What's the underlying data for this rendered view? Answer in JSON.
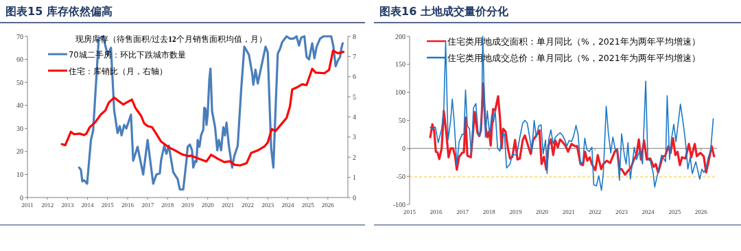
{
  "chart_data": [
    {
      "type": "line",
      "title": "图表15 库存依然偏高",
      "legend_title": "现房库存（待售面积/过去**12**个月销售面积均值，月）",
      "legend": "top",
      "xlim": [
        2011,
        2027
      ],
      "xticks": [
        2011,
        2012,
        2013,
        2014,
        2015,
        2016,
        2017,
        2018,
        2019,
        2020,
        2021,
        2022,
        2023,
        2024,
        2025,
        2026
      ],
      "ylim": [
        0,
        70
      ],
      "yticks": [
        0,
        10,
        20,
        30,
        40,
        50,
        60,
        70
      ],
      "y2lim": [
        0,
        8
      ],
      "y2ticks": [
        0,
        1,
        2,
        3,
        4,
        5,
        6,
        7,
        8
      ],
      "series": [
        {
          "name": "70城二手房：环比下跌城市数量",
          "color": "#4a7ebb",
          "x": [
            2013.58,
            2013.67,
            2013.74,
            2013.83,
            2013.98,
            2014.17,
            2014.28,
            2014.56,
            2014.78,
            2015.0,
            2015.17,
            2015.33,
            2015.5,
            2015.61,
            2015.7,
            2015.83,
            2015.94,
            2016.17,
            2016.28,
            2016.5,
            2016.78,
            2017.0,
            2017.28,
            2017.44,
            2017.61,
            2017.67,
            2017.83,
            2017.94,
            2018.06,
            2018.28,
            2018.5,
            2018.61,
            2018.78,
            2018.94,
            2019.0,
            2019.11,
            2019.22,
            2019.28,
            2019.39,
            2019.44,
            2019.5,
            2019.59,
            2019.67,
            2019.78,
            2019.83,
            2019.89,
            2019.94,
            2020.0,
            2020.08,
            2020.14,
            2020.22,
            2020.37,
            2020.48,
            2020.56,
            2020.67,
            2020.78,
            2020.86,
            2020.94,
            2021.06,
            2021.22,
            2021.33,
            2021.5,
            2021.67,
            2021.83,
            2022.06,
            2022.22,
            2022.28,
            2022.39,
            2022.5,
            2022.67,
            2022.89,
            2023.0,
            2023.17,
            2023.28,
            2023.39,
            2023.5,
            2023.61,
            2023.72,
            2023.94,
            2024.11,
            2024.28,
            2024.44,
            2024.56,
            2024.67,
            2024.83,
            2024.94,
            2025.06,
            2025.22,
            2025.33,
            2025.44,
            2025.61,
            2025.78,
            2026.17,
            2026.28,
            2026.39,
            2026.5,
            2026.61,
            2026.67,
            2026.74
          ],
          "values": [
            13,
            12,
            7,
            7.5,
            6,
            25,
            29,
            69,
            70,
            62,
            65,
            38,
            28,
            31,
            27,
            31.5,
            30,
            36,
            16,
            22,
            10,
            25,
            6,
            10,
            10.5,
            16,
            22.5,
            19,
            22.5,
            11,
            8,
            3.5,
            3.5,
            16,
            22,
            23,
            20.5,
            13,
            16,
            15.5,
            25,
            22,
            27,
            29.5,
            39,
            38.5,
            31.5,
            36,
            51,
            56,
            37.5,
            30.5,
            20.5,
            25,
            20.5,
            30.5,
            27,
            32.5,
            22.5,
            13,
            18,
            22.5,
            46.5,
            65.5,
            62,
            54,
            49,
            55.5,
            49.5,
            56.5,
            65.5,
            63,
            21.5,
            13,
            38.5,
            62.5,
            64.5,
            67.5,
            70,
            69,
            69,
            70,
            66,
            69.5,
            70,
            61,
            60,
            67,
            60.5,
            65.5,
            69,
            70,
            70,
            65.5,
            57,
            59.5,
            61,
            64.5,
            67
          ]
        },
        {
          "name": "住宅：库销比（月，右轴）",
          "color": "#ff0000",
          "axis": "y2",
          "x": [
            2012.72,
            2012.89,
            2013.17,
            2013.33,
            2013.61,
            2013.83,
            2013.94,
            2014.11,
            2014.39,
            2014.67,
            2014.89,
            2015.06,
            2015.33,
            2015.5,
            2015.78,
            2015.94,
            2016.22,
            2016.39,
            2016.67,
            2016.83,
            2017.0,
            2017.22,
            2017.39,
            2017.67,
            2018.06,
            2018.39,
            2018.72,
            2019.06,
            2019.17,
            2019.5,
            2019.94,
            2020.17,
            2020.5,
            2020.83,
            2021.11,
            2021.33,
            2021.61,
            2021.94,
            2022.17,
            2022.5,
            2022.83,
            2023.0,
            2023.2,
            2023.39,
            2023.72,
            2023.94,
            2024.11,
            2024.22,
            2024.5,
            2024.72,
            2024.94,
            2025.22,
            2025.39,
            2025.83,
            2026.06,
            2026.26,
            2026.5,
            2026.78
          ],
          "values": [
            2.65,
            2.6,
            3.26,
            3.14,
            3.17,
            3.1,
            3.17,
            3.49,
            3.74,
            4.13,
            4.32,
            4.71,
            4.96,
            4.83,
            4.62,
            4.71,
            4.86,
            4.45,
            4.06,
            3.68,
            3.55,
            3.49,
            3.23,
            2.78,
            2.49,
            2.33,
            2.14,
            2.05,
            2.08,
            1.95,
            1.79,
            2.12,
            1.93,
            1.76,
            1.8,
            1.63,
            1.59,
            1.7,
            2.21,
            2.34,
            2.53,
            2.73,
            3.4,
            3.3,
            3.69,
            3.95,
            4.53,
            5.36,
            5.49,
            5.62,
            5.58,
            6.39,
            6.2,
            6.17,
            6.33,
            7.29,
            7.16,
            7.23
          ]
        }
      ]
    },
    {
      "type": "line",
      "title": "图表16 土地成交量价分化",
      "legend": "top",
      "xlim": [
        2015,
        2026.6
      ],
      "xticks": [
        2015,
        2016,
        2017,
        2018,
        2019,
        2020,
        2021,
        2022,
        2023,
        2024,
        2025,
        2026
      ],
      "ylim": [
        -100,
        200
      ],
      "yticks": [
        -100,
        -50,
        0,
        50,
        100,
        150,
        200
      ],
      "ref_lines": [
        {
          "axis": "y",
          "value": -51,
          "color": "#ffc000",
          "line_style": "dashed"
        }
      ],
      "series": [
        {
          "name": "住宅类用地成交面积：单月同比（%，2021年为两年平均增速）",
          "color": "#ee1c25",
          "x": [
            2015.78,
            2015.86,
            2015.93,
            2015.99,
            2016.05,
            2016.12,
            2016.21,
            2016.29,
            2016.38,
            2016.47,
            2016.55,
            2016.64,
            2016.72,
            2016.78,
            2016.87,
            2016.98,
            2017.05,
            2017.11,
            2017.18,
            2017.31,
            2017.46,
            2017.56,
            2017.63,
            2017.69,
            2017.78,
            2017.86,
            2017.93,
            2018.0,
            2018.06,
            2018.15,
            2018.23,
            2018.34,
            2018.41,
            2018.47,
            2018.53,
            2018.62,
            2018.71,
            2018.79,
            2018.88,
            2018.98,
            2019.07,
            2019.16,
            2019.27,
            2019.35,
            2019.47,
            2019.57,
            2019.66,
            2019.74,
            2019.9,
            2019.98,
            2020.07,
            2020.16,
            2020.24,
            2020.33,
            2020.42,
            2020.5,
            2020.59,
            2020.68,
            2020.76,
            2020.89,
            2020.98,
            2021.11,
            2021.24,
            2021.32,
            2021.45,
            2021.54,
            2021.62,
            2021.71,
            2021.8,
            2021.88,
            2022.01,
            2022.1,
            2022.23,
            2022.31,
            2022.44,
            2022.57,
            2022.74,
            2022.83,
            2022.92,
            2023.0,
            2023.13,
            2023.26,
            2023.35,
            2023.48,
            2023.56,
            2023.65,
            2023.73,
            2023.85,
            2023.95,
            2024.08,
            2024.21,
            2024.29,
            2024.38,
            2024.47,
            2024.55,
            2024.64,
            2024.77,
            2024.85,
            2024.94,
            2025.03,
            2025.11,
            2025.2,
            2025.28,
            2025.41,
            2025.54,
            2025.63,
            2025.76,
            2025.84,
            2025.97,
            2026.1,
            2026.19,
            2026.27,
            2026.4,
            2026.49
          ],
          "values": [
            20,
            43,
            30,
            -6,
            -7,
            -19,
            0,
            67,
            30,
            -16,
            0,
            0,
            -15,
            -38,
            -15,
            -8,
            -7,
            55,
            -13,
            -16,
            65,
            28,
            22,
            32,
            116,
            40,
            20,
            30,
            5,
            70,
            68,
            93,
            55,
            0,
            35,
            30,
            0,
            -18,
            -15,
            15,
            -20,
            -18,
            15,
            23,
            5,
            -10,
            15,
            20,
            32,
            -28,
            -15,
            -38,
            5,
            16,
            -12,
            14,
            2,
            16,
            12,
            4,
            -6,
            8,
            4,
            4,
            -28,
            -30,
            -6,
            -22,
            -16,
            -28,
            -39,
            -12,
            -37,
            -28,
            -22,
            -26,
            -6,
            -2,
            -37,
            -37,
            -47,
            -39,
            -35,
            -18,
            -12,
            16,
            -20,
            14,
            -20,
            -18,
            -33,
            -28,
            -43,
            -28,
            -14,
            -14,
            4,
            -8,
            18,
            -12,
            -6,
            -30,
            -16,
            -18,
            8,
            -16,
            8,
            -14,
            -8,
            -14,
            -43,
            -26,
            4,
            -14
          ]
        },
        {
          "name": "住宅类用地成交总价：单月同比（%，2021年为两年平均增速）",
          "color": "#1a78c8",
          "x": [
            2015.78,
            2015.86,
            2015.97,
            2016.08,
            2016.21,
            2016.29,
            2016.36,
            2016.45,
            2016.55,
            2016.61,
            2016.68,
            2016.78,
            2016.87,
            2016.98,
            2017.05,
            2017.11,
            2017.18,
            2017.26,
            2017.33,
            2017.41,
            2017.5,
            2017.59,
            2017.65,
            2017.72,
            2017.76,
            2017.86,
            2017.93,
            2018.02,
            2018.1,
            2018.17,
            2018.23,
            2018.32,
            2018.41,
            2018.49,
            2018.58,
            2018.66,
            2018.79,
            2018.88,
            2018.98,
            2019.05,
            2019.16,
            2019.27,
            2019.35,
            2019.44,
            2019.53,
            2019.61,
            2019.7,
            2019.78,
            2019.87,
            2019.96,
            2020.04,
            2020.13,
            2020.19,
            2020.25,
            2020.33,
            2020.42,
            2020.5,
            2020.59,
            2020.68,
            2020.76,
            2020.85,
            2020.93,
            2021.02,
            2021.11,
            2021.19,
            2021.28,
            2021.36,
            2021.45,
            2021.54,
            2021.61,
            2021.69,
            2021.78,
            2021.88,
            2021.95,
            2022.05,
            2022.14,
            2022.24,
            2022.31,
            2022.42,
            2022.5,
            2022.59,
            2022.67,
            2022.76,
            2022.83,
            2022.92,
            2023.0,
            2023.11,
            2023.17,
            2023.24,
            2023.33,
            2023.48,
            2023.56,
            2023.69,
            2023.79,
            2023.91,
            2023.99,
            2024.08,
            2024.19,
            2024.25,
            2024.38,
            2024.51,
            2024.59,
            2024.66,
            2024.72,
            2024.81,
            2024.88,
            2024.97,
            2025.05,
            2025.11,
            2025.22,
            2025.33,
            2025.41,
            2025.5,
            2025.59,
            2025.67,
            2025.8,
            2025.95,
            2026.03,
            2026.1,
            2026.19,
            2026.27,
            2026.36,
            2026.46
          ],
          "values": [
            38,
            35,
            38,
            10,
            35,
            70,
            190,
            15,
            50,
            88,
            50,
            -30,
            12,
            25,
            25,
            104,
            40,
            35,
            -12,
            72,
            80,
            25,
            22,
            60,
            200,
            20,
            67,
            25,
            60,
            47,
            68,
            0,
            -5,
            25,
            25,
            -35,
            -28,
            -10,
            -12,
            -10,
            20,
            45,
            50,
            45,
            20,
            -8,
            50,
            20,
            40,
            42,
            -10,
            15,
            -45,
            16,
            33,
            8,
            20,
            24,
            28,
            24,
            16,
            4,
            14,
            12,
            22,
            41,
            24,
            -28,
            -24,
            18,
            -2,
            -6,
            2,
            -65,
            -67,
            -49,
            -75,
            -45,
            75,
            28,
            -8,
            20,
            -2,
            -4,
            -57,
            26,
            -14,
            -28,
            10,
            -55,
            2,
            -20,
            -4,
            -28,
            120,
            -20,
            -22,
            -43,
            -69,
            -41,
            -12,
            -18,
            -24,
            94,
            -20,
            16,
            43,
            12,
            35,
            79,
            43,
            12,
            -37,
            -16,
            -45,
            -24,
            -55,
            -37,
            -43,
            -35,
            -16,
            -4,
            53
          ]
        }
      ]
    }
  ]
}
